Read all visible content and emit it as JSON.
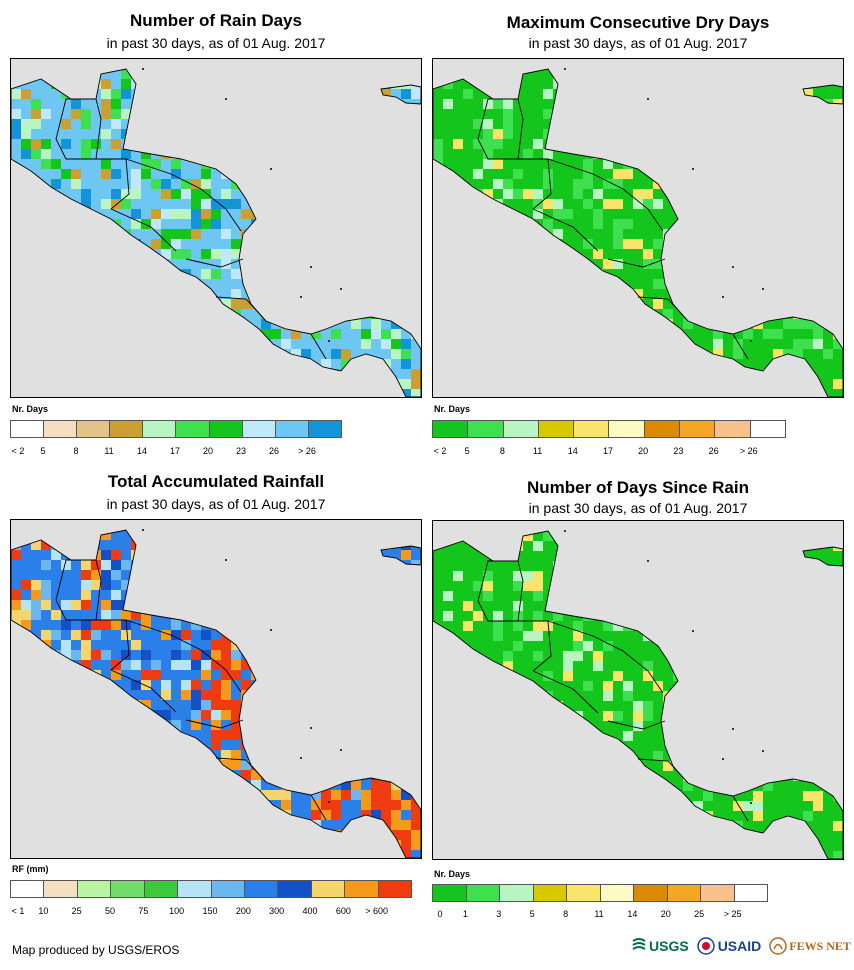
{
  "panels": [
    {
      "id": "rain-days",
      "title": "Number of Rain Days",
      "subtitle": "in past 30 days, as of 01 Aug. 2017",
      "legend_title": "Nr. Days",
      "legend_labels": [
        "< 2",
        "5",
        "8",
        "11",
        "14",
        "17",
        "20",
        "23",
        "26",
        "> 26"
      ],
      "legend_colors": [
        "#ffffff",
        "#f5dfc2",
        "#e2c48a",
        "#c9a031",
        "#b8f5c3",
        "#3ee04f",
        "#14c61c",
        "#bfe9fb",
        "#6ec6f3",
        "#1494d8"
      ],
      "fill_colors": [
        "#6ec6f3",
        "#bfe9fb",
        "#1494d8",
        "#14c61c",
        "#3ee04f",
        "#c9a031",
        "#b8f5c3"
      ]
    },
    {
      "id": "dry-days",
      "title": "Maximum Consecutive Dry Days",
      "subtitle": "in past 30 days, as of 01 Aug. 2017",
      "legend_title": "Nr. Days",
      "legend_labels": [
        "< 2",
        "5",
        "8",
        "11",
        "14",
        "17",
        "20",
        "23",
        "26",
        "> 26"
      ],
      "legend_colors": [
        "#14c61c",
        "#3ee04f",
        "#b8f5c3",
        "#d8c800",
        "#f8e56a",
        "#fff9c4",
        "#dc8a00",
        "#f5a623",
        "#f7c08c",
        "#ffffff"
      ],
      "fill_colors": [
        "#14c61c",
        "#3ee04f",
        "#14c61c",
        "#b8f5c3",
        "#3ee04f",
        "#f8e56a"
      ]
    },
    {
      "id": "rainfall",
      "title": "Total Accumulated Rainfall",
      "subtitle": "in past 30 days, as of 01 Aug. 2017",
      "legend_title": "RF (mm)",
      "legend_labels": [
        "< 1",
        "10",
        "25",
        "50",
        "75",
        "100",
        "150",
        "200",
        "300",
        "400",
        "600",
        "> 600"
      ],
      "legend_colors": [
        "#ffffff",
        "#f5dfc2",
        "#b8f5a3",
        "#72dd6a",
        "#3ec83c",
        "#b5e4f7",
        "#6bb7f0",
        "#2a7fe8",
        "#1450c8",
        "#f7d56e",
        "#f59a1b",
        "#f03a10"
      ],
      "fill_colors": [
        "#2a7fe8",
        "#6bb7f0",
        "#1450c8",
        "#f7d56e",
        "#f59a1b",
        "#f03a10",
        "#b5e4f7"
      ]
    },
    {
      "id": "since-rain",
      "title": "Number of Days Since Rain",
      "subtitle": "in past 30 days, as of 01 Aug. 2017",
      "legend_title": "Nr. Days",
      "legend_labels": [
        "0",
        "1",
        "3",
        "5",
        "8",
        "11",
        "14",
        "20",
        "25",
        "> 25"
      ],
      "legend_colors": [
        "#14c61c",
        "#3ee04f",
        "#b8f5c3",
        "#d8c800",
        "#f8e56a",
        "#fff9c4",
        "#dc8a00",
        "#f5a623",
        "#f7c08c",
        "#ffffff"
      ],
      "fill_colors": [
        "#14c61c",
        "#3ee04f",
        "#14c61c",
        "#b8f5c3",
        "#14c61c",
        "#f8e56a"
      ]
    }
  ],
  "map_colors": {
    "ocean": "#e0e0e0",
    "border": "#000000"
  },
  "credit": "Map produced by USGS/EROS",
  "logos": {
    "usgs": "USGS",
    "usaid": "USAID",
    "fewsnet": "FEWS NET"
  },
  "icons": [
    "usgs-logo-icon",
    "usaid-seal-icon",
    "fewsnet-logo-icon"
  ]
}
